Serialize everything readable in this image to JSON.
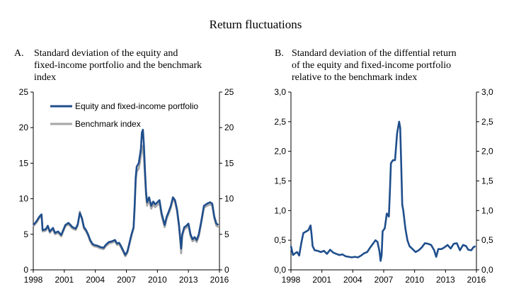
{
  "title": "Return fluctuations",
  "chart_data": [
    {
      "type": "line",
      "panel_letter": "A.",
      "title_lines": [
        "Standard deviation of the equity and",
        "fixed-income portfolio and the benchmark",
        "index"
      ],
      "xlim": [
        1998,
        2016
      ],
      "ylim": [
        0,
        25
      ],
      "y_ticks": [
        "0",
        "5",
        "10",
        "15",
        "20",
        "25"
      ],
      "x_ticks": [
        "1998",
        "2001",
        "2004",
        "2007",
        "2010",
        "2013",
        "2016"
      ],
      "legend_position": "top-left",
      "grid": false,
      "series": [
        {
          "name": "Equity and fixed-income portfolio",
          "color": "#1f4e8c",
          "points": [
            [
              1998.0,
              6.3
            ],
            [
              1998.3,
              6.8
            ],
            [
              1998.6,
              7.5
            ],
            [
              1998.8,
              7.8
            ],
            [
              1998.9,
              5.6
            ],
            [
              1999.2,
              5.7
            ],
            [
              1999.4,
              6.2
            ],
            [
              1999.6,
              5.4
            ],
            [
              1999.9,
              5.9
            ],
            [
              2000.1,
              5.2
            ],
            [
              2000.4,
              5.4
            ],
            [
              2000.7,
              4.9
            ],
            [
              2000.9,
              5.6
            ],
            [
              2001.1,
              6.3
            ],
            [
              2001.4,
              6.6
            ],
            [
              2001.6,
              6.3
            ],
            [
              2001.8,
              6.0
            ],
            [
              2002.1,
              5.8
            ],
            [
              2002.3,
              6.4
            ],
            [
              2002.5,
              8.0
            ],
            [
              2002.7,
              7.3
            ],
            [
              2002.9,
              6.0
            ],
            [
              2003.1,
              5.6
            ],
            [
              2003.3,
              5.0
            ],
            [
              2003.5,
              4.2
            ],
            [
              2003.7,
              3.7
            ],
            [
              2003.9,
              3.5
            ],
            [
              2004.2,
              3.4
            ],
            [
              2004.5,
              3.2
            ],
            [
              2004.8,
              3.1
            ],
            [
              2005.0,
              3.5
            ],
            [
              2005.3,
              3.9
            ],
            [
              2005.6,
              4.0
            ],
            [
              2005.9,
              4.2
            ],
            [
              2006.1,
              3.7
            ],
            [
              2006.3,
              3.8
            ],
            [
              2006.5,
              3.3
            ],
            [
              2006.7,
              2.7
            ],
            [
              2006.9,
              2.1
            ],
            [
              2007.1,
              2.6
            ],
            [
              2007.3,
              3.8
            ],
            [
              2007.5,
              5.0
            ],
            [
              2007.7,
              6.0
            ],
            [
              2007.8,
              9.0
            ],
            [
              2007.9,
              13.0
            ],
            [
              2008.0,
              14.5
            ],
            [
              2008.2,
              15.0
            ],
            [
              2008.3,
              16.0
            ],
            [
              2008.4,
              17.0
            ],
            [
              2008.5,
              19.3
            ],
            [
              2008.6,
              19.7
            ],
            [
              2008.7,
              17.5
            ],
            [
              2008.8,
              14.0
            ],
            [
              2008.9,
              11.0
            ],
            [
              2009.0,
              9.5
            ],
            [
              2009.2,
              10.2
            ],
            [
              2009.4,
              9.0
            ],
            [
              2009.6,
              9.6
            ],
            [
              2009.8,
              9.2
            ],
            [
              2010.0,
              9.5
            ],
            [
              2010.2,
              9.8
            ],
            [
              2010.4,
              8.0
            ],
            [
              2010.7,
              6.3
            ],
            [
              2010.9,
              7.5
            ],
            [
              2011.1,
              8.2
            ],
            [
              2011.3,
              9.0
            ],
            [
              2011.5,
              10.2
            ],
            [
              2011.7,
              9.8
            ],
            [
              2011.9,
              8.5
            ],
            [
              2012.1,
              6.2
            ],
            [
              2012.2,
              4.5
            ],
            [
              2012.3,
              3.0
            ],
            [
              2012.4,
              5.0
            ],
            [
              2012.6,
              6.0
            ],
            [
              2012.8,
              6.2
            ],
            [
              2013.0,
              6.5
            ],
            [
              2013.2,
              5.0
            ],
            [
              2013.4,
              4.3
            ],
            [
              2013.6,
              4.6
            ],
            [
              2013.8,
              4.2
            ],
            [
              2014.0,
              5.0
            ],
            [
              2014.2,
              6.5
            ],
            [
              2014.5,
              9.0
            ],
            [
              2014.8,
              9.3
            ],
            [
              2015.1,
              9.5
            ],
            [
              2015.3,
              9.3
            ],
            [
              2015.5,
              7.5
            ],
            [
              2015.7,
              6.5
            ],
            [
              2015.9,
              6.3
            ]
          ]
        },
        {
          "name": "Benchmark index",
          "color": "#a6a6a6",
          "points": [
            [
              1998.0,
              6.1
            ],
            [
              1998.3,
              6.6
            ],
            [
              1998.6,
              7.3
            ],
            [
              1998.8,
              7.6
            ],
            [
              1998.9,
              5.4
            ],
            [
              1999.2,
              5.5
            ],
            [
              1999.4,
              6.0
            ],
            [
              1999.6,
              5.2
            ],
            [
              1999.9,
              5.7
            ],
            [
              2000.1,
              5.0
            ],
            [
              2000.4,
              5.2
            ],
            [
              2000.7,
              4.7
            ],
            [
              2000.9,
              5.4
            ],
            [
              2001.1,
              6.1
            ],
            [
              2001.4,
              6.4
            ],
            [
              2001.6,
              6.1
            ],
            [
              2001.8,
              5.8
            ],
            [
              2002.1,
              5.6
            ],
            [
              2002.3,
              6.2
            ],
            [
              2002.5,
              8.2
            ],
            [
              2002.7,
              7.1
            ],
            [
              2002.9,
              5.8
            ],
            [
              2003.1,
              5.4
            ],
            [
              2003.3,
              4.8
            ],
            [
              2003.5,
              4.0
            ],
            [
              2003.7,
              3.5
            ],
            [
              2003.9,
              3.3
            ],
            [
              2004.2,
              3.2
            ],
            [
              2004.5,
              3.0
            ],
            [
              2004.8,
              2.9
            ],
            [
              2005.0,
              3.3
            ],
            [
              2005.3,
              3.7
            ],
            [
              2005.6,
              3.8
            ],
            [
              2005.9,
              4.0
            ],
            [
              2006.1,
              3.5
            ],
            [
              2006.3,
              3.6
            ],
            [
              2006.5,
              3.1
            ],
            [
              2006.7,
              2.5
            ],
            [
              2006.9,
              1.9
            ],
            [
              2007.1,
              2.4
            ],
            [
              2007.3,
              3.6
            ],
            [
              2007.5,
              4.8
            ],
            [
              2007.7,
              5.8
            ],
            [
              2007.8,
              8.6
            ],
            [
              2007.9,
              12.4
            ],
            [
              2008.0,
              13.8
            ],
            [
              2008.2,
              14.2
            ],
            [
              2008.3,
              15.0
            ],
            [
              2008.4,
              16.0
            ],
            [
              2008.5,
              17.5
            ],
            [
              2008.6,
              16.8
            ],
            [
              2008.7,
              15.8
            ],
            [
              2008.8,
              13.0
            ],
            [
              2008.9,
              10.4
            ],
            [
              2009.0,
              9.0
            ],
            [
              2009.2,
              9.8
            ],
            [
              2009.4,
              8.6
            ],
            [
              2009.6,
              9.2
            ],
            [
              2009.8,
              8.8
            ],
            [
              2010.0,
              9.1
            ],
            [
              2010.2,
              9.4
            ],
            [
              2010.4,
              7.6
            ],
            [
              2010.7,
              6.0
            ],
            [
              2010.9,
              7.2
            ],
            [
              2011.1,
              7.9
            ],
            [
              2011.3,
              8.7
            ],
            [
              2011.5,
              9.9
            ],
            [
              2011.7,
              9.5
            ],
            [
              2011.9,
              8.2
            ],
            [
              2012.1,
              5.9
            ],
            [
              2012.2,
              4.2
            ],
            [
              2012.3,
              2.3
            ],
            [
              2012.4,
              4.7
            ],
            [
              2012.6,
              5.7
            ],
            [
              2012.8,
              5.9
            ],
            [
              2013.0,
              6.2
            ],
            [
              2013.2,
              4.7
            ],
            [
              2013.4,
              4.0
            ],
            [
              2013.6,
              4.3
            ],
            [
              2013.8,
              3.9
            ],
            [
              2014.0,
              4.7
            ],
            [
              2014.2,
              6.2
            ],
            [
              2014.5,
              8.7
            ],
            [
              2014.8,
              9.0
            ],
            [
              2015.1,
              9.2
            ],
            [
              2015.3,
              9.0
            ],
            [
              2015.5,
              7.2
            ],
            [
              2015.7,
              6.2
            ],
            [
              2015.9,
              6.0
            ]
          ]
        }
      ]
    },
    {
      "type": "line",
      "panel_letter": "B.",
      "title_lines": [
        "Standard deviation of the diffential return",
        "of the equity and fixed-income portfolio",
        "relative to the benchmark index"
      ],
      "xlim": [
        1998,
        2016
      ],
      "ylim": [
        0,
        3
      ],
      "y_ticks": [
        "0,0",
        "0,5",
        "1,0",
        "1,5",
        "2,0",
        "2,5",
        "3,0"
      ],
      "x_ticks": [
        "1998",
        "2001",
        "2004",
        "2007",
        "2010",
        "2013",
        "2016"
      ],
      "grid": false,
      "series": [
        {
          "color": "#1f4e8c",
          "points": [
            [
              1998.0,
              0.4
            ],
            [
              1998.2,
              0.25
            ],
            [
              1998.4,
              0.28
            ],
            [
              1998.6,
              0.3
            ],
            [
              1998.8,
              0.24
            ],
            [
              1999.0,
              0.45
            ],
            [
              1999.2,
              0.62
            ],
            [
              1999.5,
              0.65
            ],
            [
              1999.7,
              0.67
            ],
            [
              1999.9,
              0.75
            ],
            [
              2000.0,
              0.6
            ],
            [
              2000.1,
              0.4
            ],
            [
              2000.3,
              0.33
            ],
            [
              2000.6,
              0.32
            ],
            [
              2000.9,
              0.3
            ],
            [
              2001.2,
              0.32
            ],
            [
              2001.5,
              0.27
            ],
            [
              2001.8,
              0.34
            ],
            [
              2002.1,
              0.29
            ],
            [
              2002.4,
              0.27
            ],
            [
              2002.7,
              0.25
            ],
            [
              2003.0,
              0.26
            ],
            [
              2003.3,
              0.23
            ],
            [
              2003.6,
              0.22
            ],
            [
              2003.9,
              0.21
            ],
            [
              2004.2,
              0.22
            ],
            [
              2004.5,
              0.21
            ],
            [
              2004.8,
              0.24
            ],
            [
              2005.1,
              0.28
            ],
            [
              2005.4,
              0.3
            ],
            [
              2005.7,
              0.38
            ],
            [
              2006.0,
              0.45
            ],
            [
              2006.2,
              0.5
            ],
            [
              2006.4,
              0.47
            ],
            [
              2006.6,
              0.3
            ],
            [
              2006.7,
              0.15
            ],
            [
              2006.8,
              0.25
            ],
            [
              2006.9,
              0.65
            ],
            [
              2007.1,
              0.7
            ],
            [
              2007.3,
              0.95
            ],
            [
              2007.5,
              0.9
            ],
            [
              2007.6,
              1.3
            ],
            [
              2007.7,
              1.8
            ],
            [
              2007.9,
              1.85
            ],
            [
              2008.1,
              1.85
            ],
            [
              2008.3,
              2.3
            ],
            [
              2008.5,
              2.5
            ],
            [
              2008.6,
              2.4
            ],
            [
              2008.7,
              1.8
            ],
            [
              2008.8,
              1.1
            ],
            [
              2008.9,
              1.0
            ],
            [
              2009.1,
              0.7
            ],
            [
              2009.3,
              0.5
            ],
            [
              2009.5,
              0.4
            ],
            [
              2009.8,
              0.35
            ],
            [
              2010.1,
              0.3
            ],
            [
              2010.4,
              0.33
            ],
            [
              2010.7,
              0.38
            ],
            [
              2011.0,
              0.45
            ],
            [
              2011.3,
              0.44
            ],
            [
              2011.6,
              0.42
            ],
            [
              2011.9,
              0.33
            ],
            [
              2012.1,
              0.22
            ],
            [
              2012.3,
              0.35
            ],
            [
              2012.6,
              0.35
            ],
            [
              2012.9,
              0.38
            ],
            [
              2013.2,
              0.42
            ],
            [
              2013.5,
              0.36
            ],
            [
              2013.8,
              0.44
            ],
            [
              2014.1,
              0.45
            ],
            [
              2014.4,
              0.33
            ],
            [
              2014.7,
              0.42
            ],
            [
              2015.0,
              0.4
            ],
            [
              2015.2,
              0.34
            ],
            [
              2015.5,
              0.33
            ],
            [
              2015.7,
              0.38
            ],
            [
              2015.9,
              0.4
            ]
          ]
        }
      ]
    }
  ]
}
